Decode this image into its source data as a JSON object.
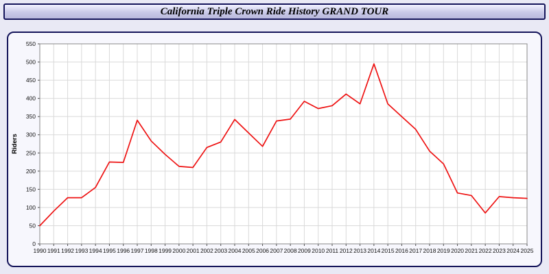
{
  "title": "California Triple Crown Ride History GRAND TOUR",
  "chart_data": {
    "type": "line",
    "title": "California Triple Crown Ride History GRAND TOUR",
    "xlabel": "",
    "ylabel": "Riders",
    "ylim": [
      0,
      550
    ],
    "ytick_step": 50,
    "grid": true,
    "legend": "none",
    "line_color": "#ee1111",
    "categories": [
      1990,
      1991,
      1992,
      1993,
      1994,
      1995,
      1996,
      1997,
      1998,
      1999,
      2000,
      2001,
      2002,
      2003,
      2004,
      2005,
      2006,
      2007,
      2008,
      2009,
      2010,
      2011,
      2012,
      2013,
      2014,
      2015,
      2016,
      2017,
      2018,
      2019,
      2020,
      2021,
      2022,
      2023,
      2024,
      2025
    ],
    "values": [
      50,
      90,
      127,
      127,
      155,
      225,
      224,
      340,
      283,
      246,
      213,
      210,
      265,
      280,
      342,
      305,
      268,
      338,
      343,
      392,
      372,
      380,
      412,
      385,
      495,
      385,
      350,
      315,
      255,
      220,
      140,
      133,
      85,
      130,
      127,
      125
    ]
  },
  "colors": {
    "grid": "#d9d9d9",
    "plot_border": "#888888",
    "plot_bg": "#ffffff",
    "tick_text": "#111111"
  }
}
